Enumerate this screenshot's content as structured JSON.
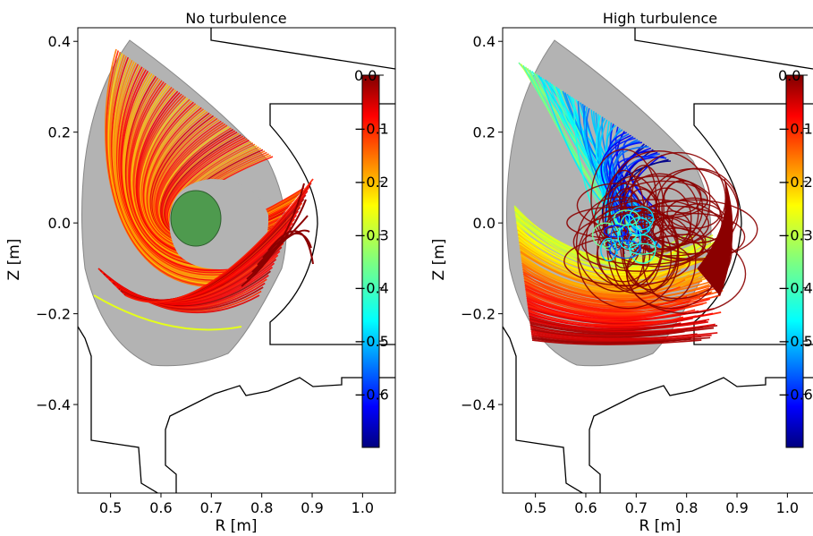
{
  "chart_data": [
    {
      "type": "scatter",
      "title": "No turbulence",
      "xlabel": "R [m]",
      "ylabel": "Z [m]",
      "xlim": [
        0.435,
        1.065
      ],
      "ylim": [
        -0.595,
        0.43
      ],
      "xticks": [
        "0.5",
        "0.6",
        "0.7",
        "0.8",
        "0.9",
        "1.0"
      ],
      "yticks": [
        "0.4",
        "0.2",
        "0.0",
        "−0.2",
        "−0.4"
      ],
      "colorbar": {
        "range": [
          -0.7,
          0.0
        ],
        "ticks": [
          "0.0",
          "−0.1",
          "−0.2",
          "−0.3",
          "−0.4",
          "−0.5",
          "−0.6"
        ],
        "colormap": "jet"
      },
      "orbit_color_range": [
        -0.02,
        -0.23
      ],
      "plasma_core": {
        "center_r": 0.67,
        "center_z": 0.01,
        "label": ""
      },
      "grid": false
    },
    {
      "type": "scatter",
      "title": "High turbulence",
      "xlabel": "R [m]",
      "ylabel": "Z [m]",
      "xlim": [
        0.435,
        1.065
      ],
      "ylim": [
        -0.595,
        0.43
      ],
      "xticks": [
        "0.5",
        "0.6",
        "0.7",
        "0.8",
        "0.9",
        "1.0"
      ],
      "yticks": [
        "0.4",
        "0.2",
        "0.0",
        "−0.2",
        "−0.4"
      ],
      "colorbar": {
        "range": [
          -0.7,
          0.0
        ],
        "ticks": [
          "0.0",
          "−0.1",
          "−0.2",
          "−0.3",
          "−0.4",
          "−0.5",
          "−0.6"
        ],
        "colormap": "jet"
      },
      "orbit_color_range": [
        0.0,
        -0.65
      ],
      "grid": false
    }
  ],
  "colors": {
    "separatrix_fill": "#b3b3b3",
    "core_fill": "#4e9a4e",
    "core_edge": "#2e5e2e",
    "wall": "#000000"
  }
}
